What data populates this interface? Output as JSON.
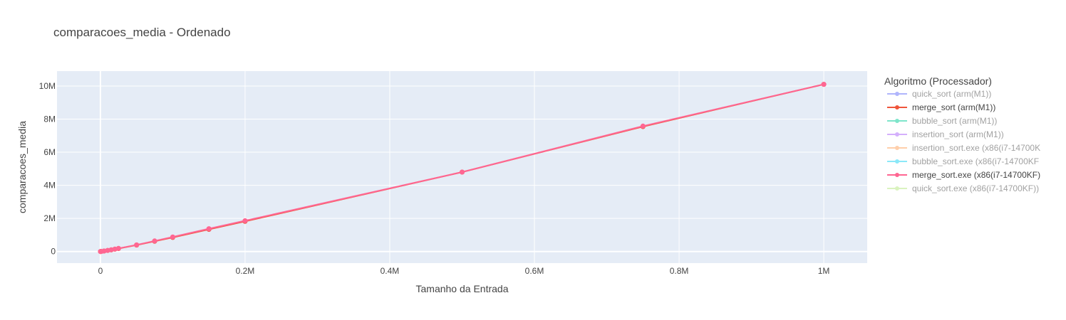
{
  "chart_data": {
    "type": "line",
    "title": "comparacoes_media - Ordenado",
    "xlabel": "Tamanho da Entrada",
    "ylabel": "comparacoes_media",
    "xlim": [
      -60000,
      1060000
    ],
    "ylim": [
      -700000,
      10900000
    ],
    "x_ticks": [
      {
        "value": 0,
        "label": "0"
      },
      {
        "value": 200000,
        "label": "0.2M"
      },
      {
        "value": 400000,
        "label": "0.4M"
      },
      {
        "value": 600000,
        "label": "0.6M"
      },
      {
        "value": 800000,
        "label": "0.8M"
      },
      {
        "value": 1000000,
        "label": "1M"
      }
    ],
    "y_ticks": [
      {
        "value": 0,
        "label": "0"
      },
      {
        "value": 2000000,
        "label": "2M"
      },
      {
        "value": 4000000,
        "label": "4M"
      },
      {
        "value": 6000000,
        "label": "6M"
      },
      {
        "value": 8000000,
        "label": "8M"
      },
      {
        "value": 10000000,
        "label": "10M"
      }
    ],
    "grid": true,
    "background_color": "#E5ECF6",
    "legend": {
      "title": "Algoritmo (Processador)",
      "placement": "right",
      "entries": [
        {
          "label": "quick_sort (arm(M1))",
          "color": "#636EFA",
          "active": false
        },
        {
          "label": "merge_sort (arm(M1))",
          "color": "#EF553B",
          "active": true
        },
        {
          "label": "bubble_sort (arm(M1))",
          "color": "#00CC96",
          "active": false
        },
        {
          "label": "insertion_sort (arm(M1))",
          "color": "#AB63FA",
          "active": false
        },
        {
          "label": "insertion_sort.exe (x86(i7-14700K",
          "color": "#FFA15A",
          "active": false
        },
        {
          "label": "bubble_sort.exe (x86(i7-14700KF",
          "color": "#19D3F3",
          "active": false
        },
        {
          "label": "merge_sort.exe (x86(i7-14700KF)",
          "color": "#FF6692",
          "active": true
        },
        {
          "label": "quick_sort.exe (x86(i7-14700KF))",
          "color": "#B6E880",
          "active": false
        }
      ]
    },
    "series": [
      {
        "name": "merge_sort (arm(M1))",
        "color": "#EF553B",
        "x": [
          100,
          500,
          1000,
          5000,
          10000,
          15000,
          20000,
          25000,
          50000,
          75000,
          100000,
          150000,
          200000,
          500000,
          750000,
          1000000
        ],
        "y": [
          500,
          2500,
          5000,
          30000,
          65000,
          100000,
          140000,
          180000,
          390000,
          620000,
          850000,
          1340000,
          1820000,
          4800000,
          7550000,
          10100000
        ]
      },
      {
        "name": "merge_sort.exe (x86(i7-14700KF)",
        "color": "#FF6692",
        "x": [
          100,
          500,
          1000,
          5000,
          10000,
          15000,
          20000,
          25000,
          50000,
          75000,
          100000,
          150000,
          200000,
          500000,
          750000,
          1000000
        ],
        "y": [
          500,
          2500,
          5000,
          32000,
          69000,
          107000,
          148000,
          188000,
          400000,
          640000,
          880000,
          1380000,
          1860000,
          4800000,
          7580000,
          10100000
        ]
      }
    ]
  }
}
